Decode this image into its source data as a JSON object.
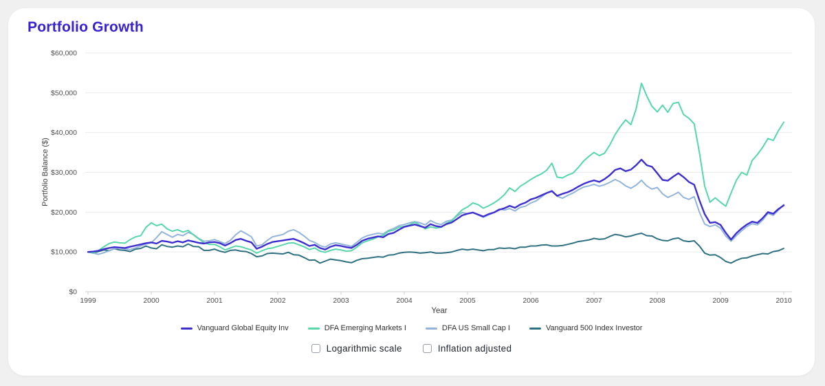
{
  "page": {
    "title": "Portfolio Growth"
  },
  "chart": {
    "y_axis_title": "Portfolio Balance ($)",
    "x_axis_title": "Year",
    "y_tick_values_thousands": [
      0,
      10,
      20,
      30,
      40,
      50,
      60
    ],
    "y_tick_labels": [
      "$0",
      "$10,000",
      "$20,000",
      "$30,000",
      "$40,000",
      "$50,000",
      "$60,000"
    ],
    "x_tick_labels": [
      "1999",
      "2000",
      "2001",
      "2002",
      "2003",
      "2004",
      "2005",
      "2006",
      "2007",
      "2008",
      "2009",
      "2010"
    ]
  },
  "chart_data": {
    "type": "line",
    "title": "Portfolio Growth",
    "xlabel": "Year",
    "ylabel": "Portfolio Balance ($)",
    "x_start_year": 1999,
    "x_end_year": 2010,
    "points_per_year": 12,
    "note": "monthly values Jan-1999 through Jan-2010, estimated from pixels",
    "values_unit": "USD thousands",
    "ylim_thousands": [
      0,
      60
    ],
    "grid": "horizontal",
    "legend_position": "bottom",
    "series": [
      {
        "name": "Vanguard Global Equity Inv",
        "color": "#3c2ed1",
        "stroke_width": 2.4,
        "values_thousands": [
          10.0,
          10.1,
          10.3,
          10.7,
          11.0,
          11.2,
          11.1,
          11.0,
          11.3,
          11.6,
          11.9,
          12.2,
          12.4,
          12.1,
          12.8,
          12.6,
          12.3,
          12.7,
          12.4,
          12.9,
          12.6,
          12.3,
          12.1,
          12.4,
          12.5,
          12.2,
          11.6,
          12.2,
          13.0,
          13.3,
          12.8,
          12.4,
          10.8,
          11.3,
          12.0,
          12.5,
          12.7,
          12.9,
          13.1,
          13.3,
          12.8,
          12.2,
          11.5,
          11.8,
          11.0,
          10.6,
          11.3,
          11.7,
          11.5,
          11.2,
          11.0,
          11.8,
          12.8,
          13.3,
          13.6,
          13.9,
          13.7,
          14.5,
          14.8,
          15.6,
          16.3,
          16.6,
          16.9,
          16.5,
          16.1,
          17.0,
          16.5,
          16.3,
          17.0,
          17.4,
          18.3,
          19.2,
          19.6,
          19.9,
          19.4,
          18.9,
          19.5,
          19.9,
          20.6,
          21.0,
          21.6,
          21.1,
          21.9,
          22.4,
          23.2,
          23.6,
          24.2,
          24.8,
          25.3,
          24.1,
          24.6,
          25.0,
          25.6,
          26.4,
          27.1,
          27.6,
          28.0,
          27.6,
          28.3,
          29.3,
          30.6,
          31.0,
          30.3,
          30.7,
          31.8,
          33.2,
          31.8,
          31.4,
          29.8,
          28.1,
          27.9,
          28.9,
          29.8,
          28.8,
          27.6,
          26.9,
          23.0,
          19.5,
          17.3,
          17.5,
          16.8,
          14.8,
          13.1,
          14.7,
          15.9,
          16.9,
          17.6,
          17.3,
          18.5,
          20.0,
          19.6,
          20.8,
          21.7
        ]
      },
      {
        "name": "DFA Emerging Markets I",
        "color": "#55d7a9",
        "stroke_width": 2,
        "values_thousands": [
          10.0,
          9.8,
          10.4,
          11.3,
          12.1,
          12.5,
          12.3,
          12.2,
          13.1,
          13.8,
          14.1,
          16.2,
          17.3,
          16.6,
          17.0,
          15.8,
          15.2,
          15.6,
          15.0,
          15.4,
          14.3,
          13.3,
          12.3,
          11.9,
          11.9,
          11.3,
          10.5,
          11.0,
          11.5,
          11.3,
          10.9,
          10.5,
          9.7,
          10.3,
          10.8,
          11.0,
          11.4,
          11.8,
          12.2,
          12.3,
          11.8,
          11.3,
          10.6,
          11.0,
          10.2,
          9.9,
          10.4,
          10.7,
          10.5,
          10.2,
          10.3,
          11.2,
          12.3,
          12.8,
          13.2,
          13.8,
          14.2,
          15.2,
          15.5,
          16.2,
          16.4,
          16.8,
          17.5,
          16.7,
          15.8,
          16.3,
          16.0,
          16.2,
          17.2,
          17.8,
          19.3,
          20.6,
          21.3,
          22.3,
          21.9,
          21.0,
          21.6,
          22.3,
          23.2,
          24.4,
          26.1,
          25.2,
          26.5,
          27.3,
          28.2,
          29.0,
          29.6,
          30.5,
          32.3,
          28.8,
          28.6,
          29.3,
          29.8,
          31.2,
          32.8,
          34.0,
          35.0,
          34.2,
          34.8,
          36.9,
          39.5,
          41.5,
          43.2,
          42.0,
          46.0,
          52.4,
          49.2,
          46.6,
          45.2,
          46.9,
          45.1,
          47.3,
          47.6,
          44.5,
          43.6,
          42.2,
          35.0,
          26.5,
          22.5,
          23.6,
          22.5,
          21.5,
          24.8,
          28.0,
          30.0,
          29.3,
          33.0,
          34.5,
          36.3,
          38.5,
          38.0,
          40.5,
          42.6
        ]
      },
      {
        "name": "DFA US Small Cap I",
        "color": "#92b4da",
        "stroke_width": 2,
        "values_thousands": [
          10.0,
          9.7,
          9.4,
          9.8,
          10.3,
          10.8,
          11.0,
          10.8,
          10.6,
          11.0,
          11.5,
          12.0,
          12.3,
          13.6,
          15.1,
          14.4,
          13.7,
          14.4,
          14.1,
          14.9,
          14.4,
          13.4,
          12.7,
          12.8,
          13.1,
          12.6,
          12.1,
          12.9,
          14.3,
          15.3,
          14.6,
          13.8,
          11.5,
          11.8,
          12.9,
          13.8,
          14.1,
          14.4,
          15.2,
          15.6,
          14.9,
          14.0,
          12.9,
          12.4,
          11.6,
          11.2,
          12.0,
          12.3,
          12.0,
          11.7,
          11.4,
          12.4,
          13.5,
          14.1,
          14.4,
          14.7,
          14.5,
          15.4,
          15.9,
          16.6,
          16.9,
          17.3,
          17.6,
          17.3,
          16.8,
          17.9,
          17.2,
          16.9,
          17.7,
          18.0,
          19.0,
          19.9,
          19.6,
          19.9,
          19.3,
          18.7,
          19.3,
          19.9,
          20.8,
          20.5,
          20.9,
          20.3,
          21.2,
          21.5,
          22.3,
          22.8,
          23.8,
          24.8,
          25.4,
          24.0,
          23.5,
          24.2,
          24.8,
          25.6,
          26.3,
          26.6,
          27.0,
          26.5,
          26.9,
          27.5,
          28.2,
          27.6,
          26.6,
          26.0,
          26.8,
          28.0,
          26.6,
          25.8,
          26.2,
          24.6,
          23.7,
          24.3,
          25.0,
          23.7,
          23.2,
          23.9,
          20.0,
          17.0,
          16.4,
          16.8,
          16.0,
          14.0,
          12.7,
          14.1,
          15.3,
          16.4,
          17.1,
          16.8,
          18.0,
          19.7,
          19.2,
          20.5,
          21.9
        ]
      },
      {
        "name": "Vanguard 500 Index Investor",
        "color": "#2e7080",
        "stroke_width": 2,
        "values_thousands": [
          10.0,
          9.7,
          10.1,
          10.5,
          10.3,
          10.8,
          10.5,
          10.4,
          10.1,
          10.7,
          10.9,
          11.5,
          11.0,
          10.8,
          11.8,
          11.4,
          11.2,
          11.5,
          11.3,
          12.0,
          11.4,
          11.3,
          10.4,
          10.4,
          10.7,
          10.2,
          9.9,
          10.4,
          10.5,
          10.2,
          10.1,
          9.6,
          8.8,
          9.0,
          9.6,
          9.7,
          9.6,
          9.5,
          9.9,
          9.3,
          9.2,
          8.6,
          7.9,
          8.0,
          7.2,
          7.7,
          8.2,
          8.0,
          7.8,
          7.5,
          7.3,
          7.9,
          8.3,
          8.4,
          8.6,
          8.8,
          8.7,
          9.2,
          9.3,
          9.7,
          9.9,
          10.0,
          9.9,
          9.7,
          9.8,
          10.0,
          9.7,
          9.7,
          9.8,
          10.0,
          10.4,
          10.7,
          10.5,
          10.7,
          10.5,
          10.3,
          10.6,
          10.6,
          11.0,
          10.9,
          11.0,
          10.8,
          11.2,
          11.2,
          11.5,
          11.5,
          11.7,
          11.8,
          11.5,
          11.5,
          11.6,
          11.9,
          12.2,
          12.6,
          12.8,
          13.0,
          13.4,
          13.2,
          13.3,
          13.9,
          14.4,
          14.2,
          13.8,
          14.0,
          14.4,
          14.7,
          14.1,
          14.0,
          13.3,
          12.9,
          12.8,
          13.3,
          13.5,
          12.8,
          12.6,
          12.8,
          11.5,
          9.7,
          9.2,
          9.3,
          8.6,
          7.6,
          7.2,
          7.9,
          8.4,
          8.5,
          9.0,
          9.3,
          9.6,
          9.5,
          10.1,
          10.3,
          10.9
        ]
      }
    ]
  },
  "controls": {
    "checkboxes": [
      {
        "label": "Logarithmic scale",
        "checked": false
      },
      {
        "label": "Inflation adjusted",
        "checked": false
      }
    ]
  }
}
